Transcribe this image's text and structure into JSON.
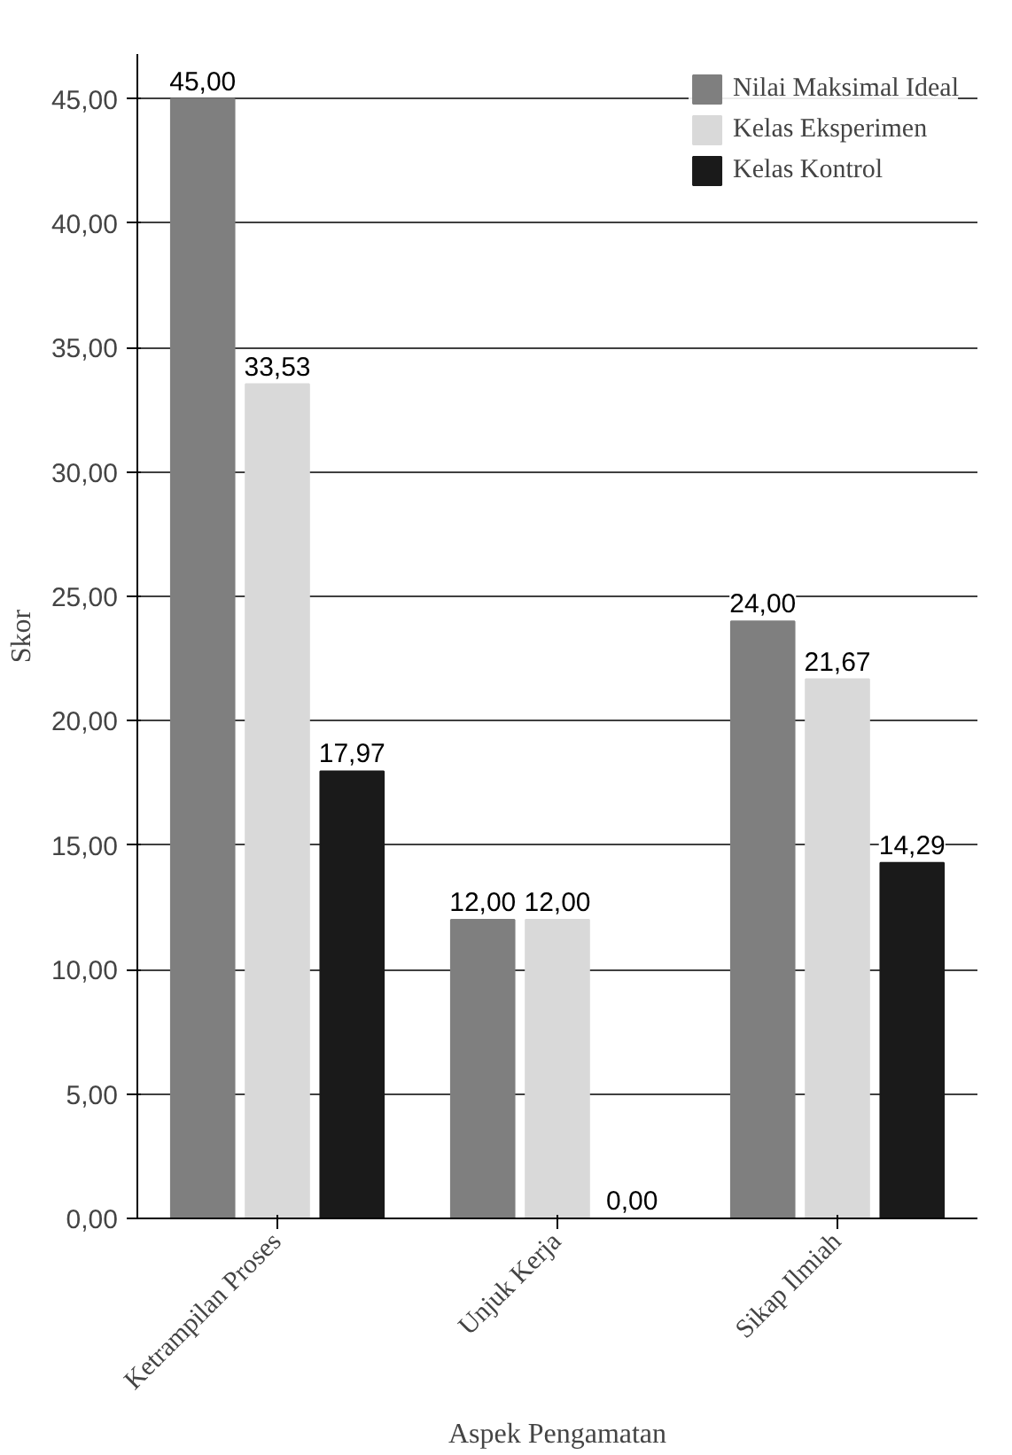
{
  "chart_data": {
    "type": "bar",
    "xlabel": "Aspek Pengamatan",
    "ylabel": "Skor",
    "categories": [
      "Ketrampilan Proses",
      "Unjuk Kerja",
      "Sikap Ilmiah"
    ],
    "series": [
      {
        "name": "Nilai Maksimal Ideal",
        "color": "#7f7f7f",
        "values": [
          45.0,
          12.0,
          24.0
        ],
        "value_labels": [
          "45,00",
          "12,00",
          "24,00"
        ]
      },
      {
        "name": "Kelas Eksperimen",
        "color": "#d9d9d9",
        "values": [
          33.53,
          12.0,
          21.67
        ],
        "value_labels": [
          "33,53",
          "12,00",
          "21,67"
        ]
      },
      {
        "name": "Kelas Kontrol",
        "color": "#1a1a1a",
        "values": [
          17.97,
          0.0,
          14.29
        ],
        "value_labels": [
          "17,97",
          "0,00",
          "14,29"
        ]
      }
    ],
    "ylim": [
      0,
      45
    ],
    "yticks": [
      {
        "value": 0,
        "label": "0,00"
      },
      {
        "value": 5,
        "label": "5,00"
      },
      {
        "value": 10,
        "label": "10,00"
      },
      {
        "value": 15,
        "label": "15,00"
      },
      {
        "value": 20,
        "label": "20,00"
      },
      {
        "value": 25,
        "label": "25,00"
      },
      {
        "value": 30,
        "label": "30,00"
      },
      {
        "value": 35,
        "label": "35,00"
      },
      {
        "value": 40,
        "label": "40,00"
      },
      {
        "value": 45,
        "label": "45,00"
      }
    ],
    "grid": "y",
    "legend": "top right"
  }
}
